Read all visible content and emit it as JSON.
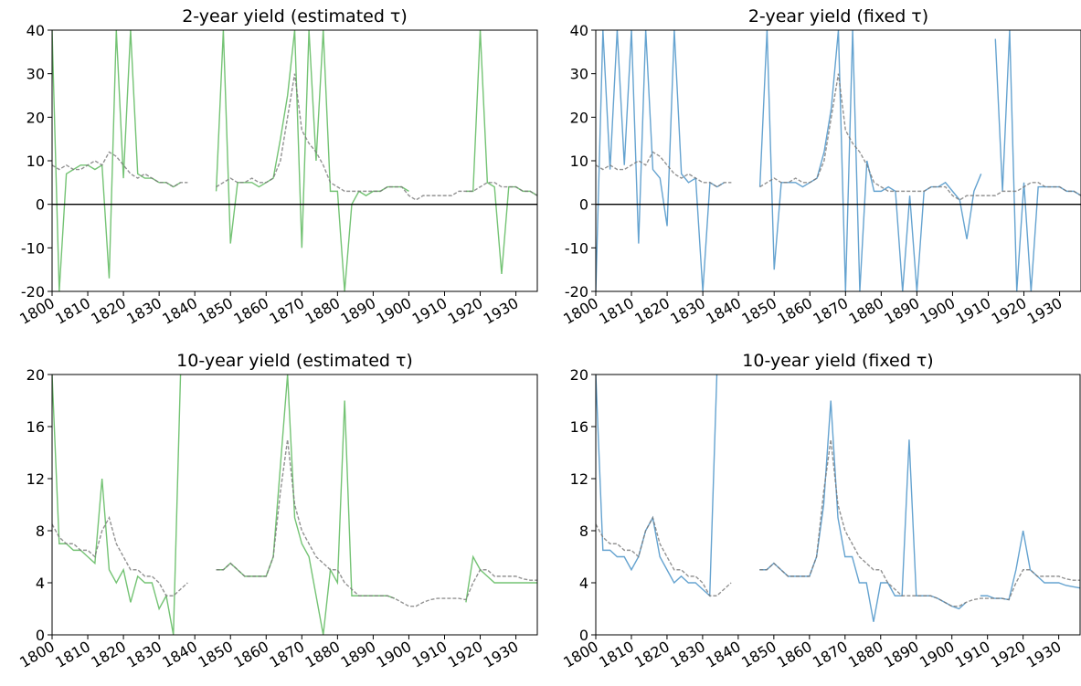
{
  "chart_data": [
    {
      "type": "line",
      "title": "2-year yield (estimated τ)",
      "xlim": [
        1800,
        1936
      ],
      "xticks": [
        1800,
        1810,
        1820,
        1830,
        1840,
        1850,
        1860,
        1870,
        1880,
        1890,
        1900,
        1910,
        1920,
        1930
      ],
      "ylim": [
        -20,
        40
      ],
      "yticks": [
        -20,
        -10,
        0,
        10,
        20,
        30,
        40
      ],
      "hline": 0,
      "x": [
        1800,
        1802,
        1804,
        1806,
        1808,
        1810,
        1812,
        1814,
        1816,
        1818,
        1820,
        1822,
        1824,
        1826,
        1828,
        1830,
        1832,
        1834,
        1836,
        1838,
        1840,
        1842,
        1844,
        1846,
        1848,
        1850,
        1852,
        1854,
        1856,
        1858,
        1860,
        1862,
        1864,
        1866,
        1868,
        1870,
        1872,
        1874,
        1876,
        1878,
        1880,
        1882,
        1884,
        1886,
        1888,
        1890,
        1892,
        1894,
        1896,
        1898,
        1900,
        1902,
        1904,
        1906,
        1908,
        1910,
        1912,
        1914,
        1916,
        1918,
        1920,
        1922,
        1924,
        1926,
        1928,
        1930,
        1932,
        1934,
        1936
      ],
      "series": [
        {
          "color": "#5cb85c",
          "dash": false,
          "values": [
            40,
            -20,
            7,
            8,
            9,
            9,
            8,
            9,
            -17,
            40,
            6,
            40,
            7,
            6,
            6,
            5,
            5,
            4,
            5,
            null,
            null,
            null,
            null,
            3,
            40,
            -9,
            5,
            5,
            5,
            4,
            5,
            6,
            15,
            25,
            40,
            -10,
            40,
            10,
            40,
            3,
            3,
            -20,
            0,
            3,
            2,
            3,
            3,
            4,
            4,
            4,
            3,
            null,
            null,
            null,
            null,
            null,
            null,
            null,
            3,
            3,
            40,
            5,
            4,
            -16,
            4,
            4,
            3,
            3,
            2
          ]
        },
        {
          "color": "#777777",
          "dash": true,
          "values": [
            9,
            8,
            9,
            8,
            8,
            9,
            10,
            9,
            12,
            11,
            9,
            7,
            6,
            7,
            6,
            5,
            5,
            4,
            5,
            5,
            null,
            null,
            null,
            4,
            5,
            6,
            5,
            5,
            6,
            5,
            5,
            6,
            10,
            20,
            30,
            17,
            14,
            12,
            9,
            5,
            4,
            3,
            3,
            3,
            3,
            3,
            3,
            4,
            4,
            4,
            2,
            1,
            2,
            2,
            2,
            2,
            2,
            3,
            3,
            3,
            4,
            5,
            5,
            4,
            4,
            4,
            3,
            3,
            2
          ]
        }
      ]
    },
    {
      "type": "line",
      "title": "2-year yield (fixed τ)",
      "xlim": [
        1800,
        1936
      ],
      "xticks": [
        1800,
        1810,
        1820,
        1830,
        1840,
        1850,
        1860,
        1870,
        1880,
        1890,
        1900,
        1910,
        1920,
        1930
      ],
      "ylim": [
        -20,
        40
      ],
      "yticks": [
        -20,
        -10,
        0,
        10,
        20,
        30,
        40
      ],
      "hline": 0,
      "x": [
        1800,
        1802,
        1804,
        1806,
        1808,
        1810,
        1812,
        1814,
        1816,
        1818,
        1820,
        1822,
        1824,
        1826,
        1828,
        1830,
        1832,
        1834,
        1836,
        1838,
        1840,
        1842,
        1844,
        1846,
        1848,
        1850,
        1852,
        1854,
        1856,
        1858,
        1860,
        1862,
        1864,
        1866,
        1868,
        1870,
        1872,
        1874,
        1876,
        1878,
        1880,
        1882,
        1884,
        1886,
        1888,
        1890,
        1892,
        1894,
        1896,
        1898,
        1900,
        1902,
        1904,
        1906,
        1908,
        1910,
        1912,
        1914,
        1916,
        1918,
        1920,
        1922,
        1924,
        1926,
        1928,
        1930,
        1932,
        1934,
        1936
      ],
      "series": [
        {
          "color": "#4a93c8",
          "dash": false,
          "values": [
            -20,
            40,
            8,
            40,
            9,
            40,
            -9,
            40,
            8,
            6,
            -5,
            40,
            7,
            5,
            6,
            -20,
            5,
            4,
            5,
            null,
            null,
            null,
            null,
            4,
            40,
            -15,
            5,
            5,
            5,
            4,
            5,
            6,
            12,
            22,
            40,
            -20,
            40,
            -20,
            10,
            3,
            3,
            4,
            3,
            -20,
            2,
            -20,
            3,
            4,
            4,
            5,
            3,
            1,
            -8,
            3,
            7,
            null,
            38,
            3,
            40,
            -20,
            5,
            -20,
            4,
            4,
            4,
            4,
            3,
            3,
            2
          ]
        },
        {
          "color": "#777777",
          "dash": true,
          "values": [
            9,
            8,
            9,
            8,
            8,
            9,
            10,
            9,
            12,
            11,
            9,
            7,
            6,
            7,
            6,
            5,
            5,
            4,
            5,
            5,
            null,
            null,
            null,
            4,
            5,
            6,
            5,
            5,
            6,
            5,
            5,
            6,
            10,
            20,
            30,
            17,
            14,
            12,
            9,
            5,
            4,
            3,
            3,
            3,
            3,
            3,
            3,
            4,
            4,
            4,
            2,
            1,
            2,
            2,
            2,
            2,
            2,
            3,
            3,
            3,
            4,
            5,
            5,
            4,
            4,
            4,
            3,
            3,
            2
          ]
        }
      ]
    },
    {
      "type": "line",
      "title": "10-year yield (estimated τ)",
      "xlim": [
        1800,
        1936
      ],
      "xticks": [
        1800,
        1810,
        1820,
        1830,
        1840,
        1850,
        1860,
        1870,
        1880,
        1890,
        1900,
        1910,
        1920,
        1930
      ],
      "ylim": [
        0,
        20
      ],
      "yticks": [
        0,
        4,
        8,
        12,
        16,
        20
      ],
      "x": [
        1800,
        1802,
        1804,
        1806,
        1808,
        1810,
        1812,
        1814,
        1816,
        1818,
        1820,
        1822,
        1824,
        1826,
        1828,
        1830,
        1832,
        1834,
        1836,
        1838,
        1840,
        1842,
        1844,
        1846,
        1848,
        1850,
        1852,
        1854,
        1856,
        1858,
        1860,
        1862,
        1864,
        1866,
        1868,
        1870,
        1872,
        1874,
        1876,
        1878,
        1880,
        1882,
        1884,
        1886,
        1888,
        1890,
        1892,
        1894,
        1896,
        1898,
        1900,
        1902,
        1904,
        1906,
        1908,
        1910,
        1912,
        1914,
        1916,
        1918,
        1920,
        1922,
        1924,
        1926,
        1928,
        1930,
        1932,
        1934,
        1936
      ],
      "series": [
        {
          "color": "#5cb85c",
          "dash": false,
          "values": [
            20,
            7,
            7,
            6.5,
            6.5,
            6,
            5.5,
            12,
            5,
            4,
            5,
            2.5,
            4.5,
            4,
            4,
            2,
            3,
            0,
            20,
            null,
            null,
            null,
            null,
            5,
            5,
            5.5,
            5,
            4.5,
            4.5,
            4.5,
            4.5,
            6,
            13,
            20,
            9,
            7,
            6,
            3,
            0,
            5,
            4,
            18,
            3,
            3,
            3,
            3,
            3,
            3,
            2.8,
            null,
            null,
            null,
            null,
            null,
            null,
            null,
            null,
            null,
            2.5,
            6,
            5,
            4.5,
            4,
            4,
            4,
            4,
            4,
            4,
            4
          ]
        },
        {
          "color": "#777777",
          "dash": true,
          "values": [
            8.5,
            7.5,
            7,
            7,
            6.5,
            6.5,
            6,
            8,
            9,
            7,
            6,
            5,
            5,
            4.5,
            4.5,
            4,
            3,
            3,
            3.5,
            4,
            null,
            null,
            null,
            5,
            5,
            5.5,
            5,
            4.5,
            4.5,
            4.5,
            4.5,
            6,
            11,
            15,
            10,
            8,
            7,
            6,
            5.5,
            5,
            5,
            4,
            3.5,
            3,
            3,
            3,
            3,
            3,
            2.8,
            2.5,
            2.2,
            2.2,
            2.5,
            2.7,
            2.8,
            2.8,
            2.8,
            2.8,
            2.7,
            4,
            5,
            5,
            4.5,
            4.5,
            4.5,
            4.5,
            4.3,
            4.2,
            4.2
          ]
        }
      ]
    },
    {
      "type": "line",
      "title": "10-year yield (fixed τ)",
      "xlim": [
        1800,
        1936
      ],
      "xticks": [
        1800,
        1810,
        1820,
        1830,
        1840,
        1850,
        1860,
        1870,
        1880,
        1890,
        1900,
        1910,
        1920,
        1930
      ],
      "ylim": [
        0,
        20
      ],
      "yticks": [
        0,
        4,
        8,
        12,
        16,
        20
      ],
      "x": [
        1800,
        1802,
        1804,
        1806,
        1808,
        1810,
        1812,
        1814,
        1816,
        1818,
        1820,
        1822,
        1824,
        1826,
        1828,
        1830,
        1832,
        1834,
        1836,
        1838,
        1840,
        1842,
        1844,
        1846,
        1848,
        1850,
        1852,
        1854,
        1856,
        1858,
        1860,
        1862,
        1864,
        1866,
        1868,
        1870,
        1872,
        1874,
        1876,
        1878,
        1880,
        1882,
        1884,
        1886,
        1888,
        1890,
        1892,
        1894,
        1896,
        1898,
        1900,
        1902,
        1904,
        1906,
        1908,
        1910,
        1912,
        1914,
        1916,
        1918,
        1920,
        1922,
        1924,
        1926,
        1928,
        1930,
        1932,
        1934,
        1936
      ],
      "series": [
        {
          "color": "#4a93c8",
          "dash": false,
          "values": [
            20,
            6.5,
            6.5,
            6,
            6,
            5,
            6,
            8,
            9,
            6,
            5,
            4,
            4.5,
            4,
            4,
            3.5,
            3,
            20,
            null,
            null,
            null,
            null,
            null,
            5,
            5,
            5.5,
            5,
            4.5,
            4.5,
            4.5,
            4.5,
            6,
            10,
            18,
            9,
            6,
            6,
            4,
            4,
            1,
            4,
            4,
            3,
            3,
            15,
            3,
            3,
            3,
            2.8,
            2.5,
            2.2,
            2,
            2.5,
            null,
            3,
            3,
            2.8,
            2.8,
            2.7,
            5,
            8,
            5,
            4.5,
            4,
            4,
            4,
            3.8,
            3.7,
            3.6
          ]
        },
        {
          "color": "#777777",
          "dash": true,
          "values": [
            8.5,
            7.5,
            7,
            7,
            6.5,
            6.5,
            6,
            8,
            9,
            7,
            6,
            5,
            5,
            4.5,
            4.5,
            4,
            3,
            3,
            3.5,
            4,
            null,
            null,
            null,
            5,
            5,
            5.5,
            5,
            4.5,
            4.5,
            4.5,
            4.5,
            6,
            11,
            15,
            10,
            8,
            7,
            6,
            5.5,
            5,
            5,
            4,
            3.5,
            3,
            3,
            3,
            3,
            3,
            2.8,
            2.5,
            2.2,
            2.2,
            2.5,
            2.7,
            2.8,
            2.8,
            2.8,
            2.8,
            2.7,
            4,
            5,
            5,
            4.5,
            4.5,
            4.5,
            4.5,
            4.3,
            4.2,
            4.2
          ]
        }
      ]
    }
  ]
}
